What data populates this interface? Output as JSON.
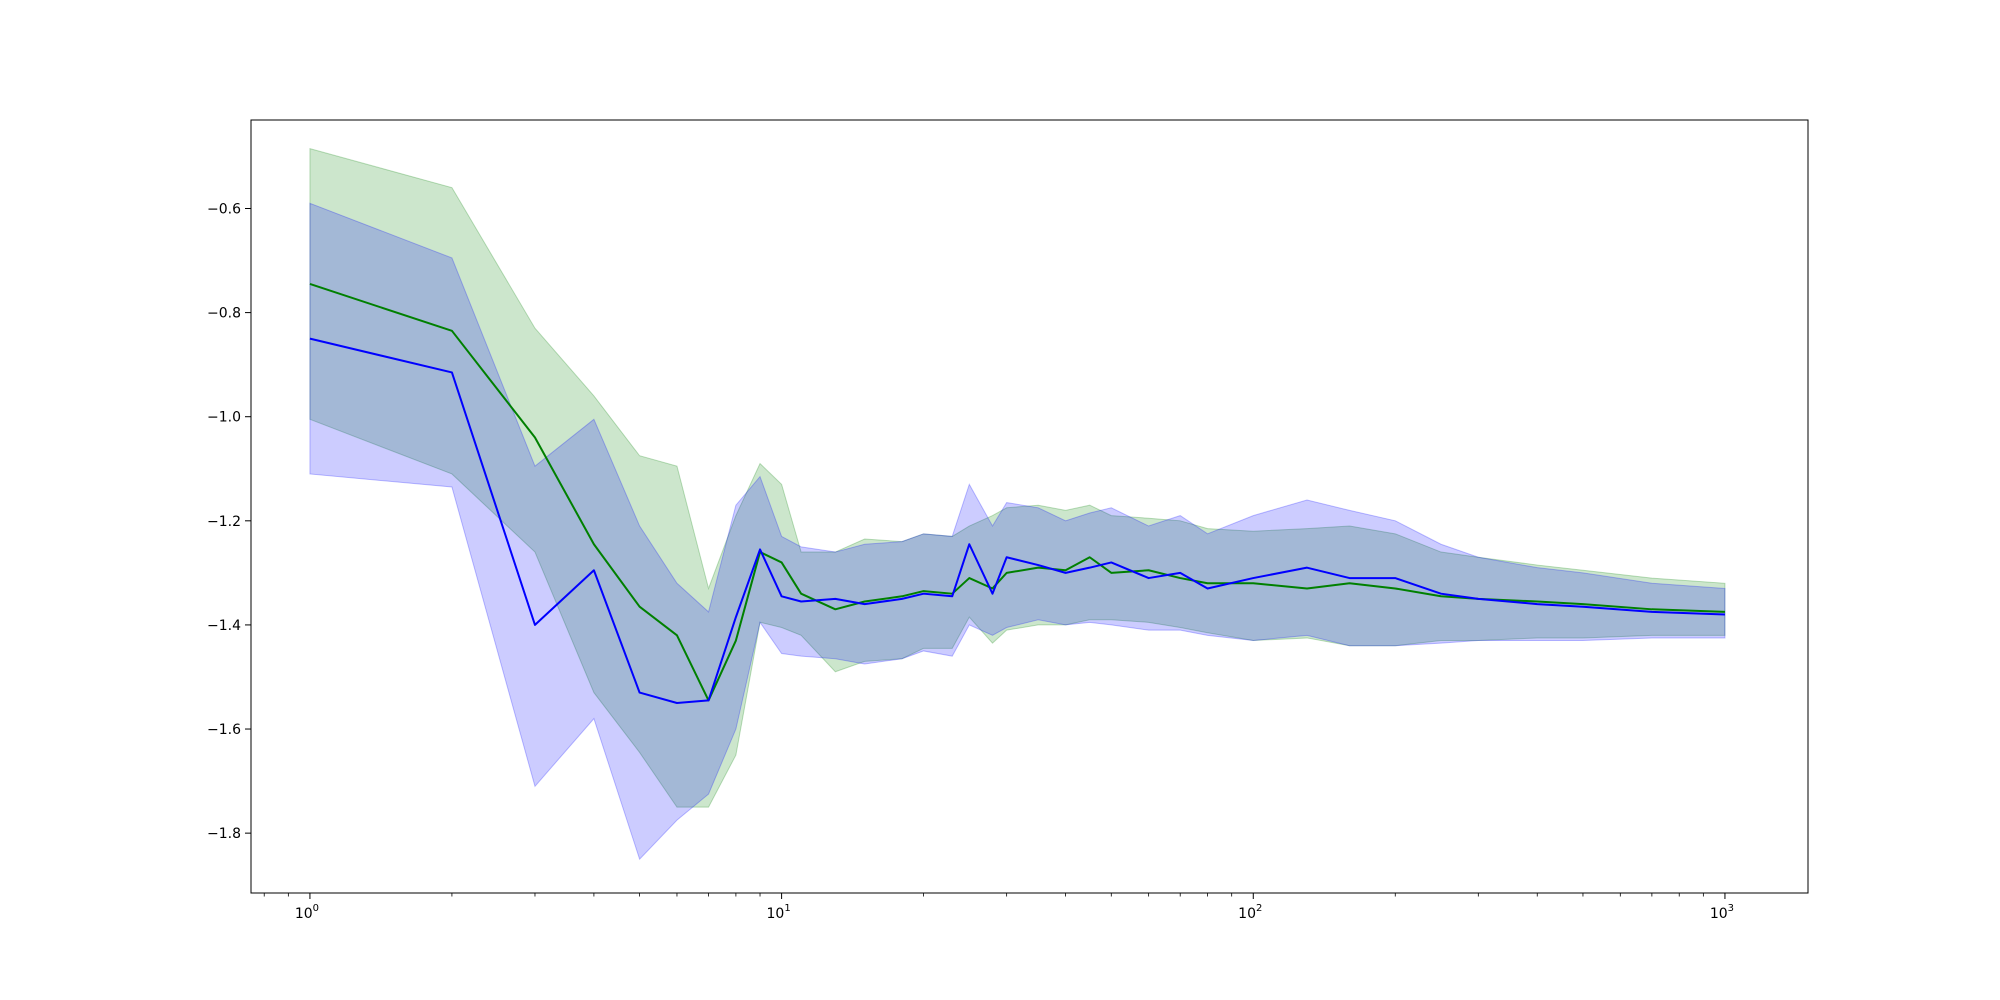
{
  "chart_data": {
    "type": "line",
    "xscale": "log",
    "xlim": [
      0.75,
      1500
    ],
    "ylim": [
      -1.915,
      -0.43
    ],
    "grid": false,
    "legend": "none",
    "title": "",
    "xlabel": "",
    "ylabel": "",
    "x_ticks": [
      {
        "value": 1,
        "label_base": "10",
        "label_exp": "0"
      },
      {
        "value": 10,
        "label_base": "10",
        "label_exp": "1"
      },
      {
        "value": 100,
        "label_base": "10",
        "label_exp": "2"
      },
      {
        "value": 1000,
        "label_base": "10",
        "label_exp": "3"
      }
    ],
    "y_ticks": [
      {
        "value": -0.6,
        "label": "−0.6"
      },
      {
        "value": -0.8,
        "label": "−0.8"
      },
      {
        "value": -1.0,
        "label": "−1.0"
      },
      {
        "value": -1.2,
        "label": "−1.2"
      },
      {
        "value": -1.4,
        "label": "−1.4"
      },
      {
        "value": -1.6,
        "label": "−1.6"
      },
      {
        "value": -1.8,
        "label": "−1.8"
      }
    ],
    "series": [
      {
        "color": "#008000",
        "band_color": "#008000",
        "band_opacity": 0.2,
        "x": [
          1,
          2,
          3,
          4,
          5,
          6,
          7,
          8,
          9,
          10,
          11,
          13,
          15,
          18,
          20,
          23,
          25,
          28,
          30,
          35,
          40,
          45,
          50,
          60,
          70,
          80,
          100,
          130,
          160,
          200,
          250,
          300,
          400,
          500,
          700,
          1000
        ],
        "values": [
          -0.745,
          -0.835,
          -1.04,
          -1.245,
          -1.365,
          -1.42,
          -1.545,
          -1.43,
          -1.26,
          -1.28,
          -1.34,
          -1.37,
          -1.355,
          -1.345,
          -1.335,
          -1.34,
          -1.31,
          -1.33,
          -1.3,
          -1.29,
          -1.295,
          -1.27,
          -1.3,
          -1.295,
          -1.31,
          -1.32,
          -1.32,
          -1.33,
          -1.32,
          -1.33,
          -1.345,
          -1.35,
          -1.355,
          -1.36,
          -1.37,
          -1.375
        ],
        "lower": [
          -1.005,
          -1.11,
          -1.26,
          -1.53,
          -1.645,
          -1.75,
          -1.75,
          -1.65,
          -1.395,
          -1.405,
          -1.42,
          -1.49,
          -1.47,
          -1.465,
          -1.445,
          -1.445,
          -1.385,
          -1.435,
          -1.41,
          -1.4,
          -1.4,
          -1.39,
          -1.39,
          -1.395,
          -1.405,
          -1.415,
          -1.43,
          -1.425,
          -1.44,
          -1.44,
          -1.43,
          -1.43,
          -1.425,
          -1.425,
          -1.42,
          -1.42
        ],
        "upper": [
          -0.485,
          -0.56,
          -0.83,
          -0.96,
          -1.075,
          -1.095,
          -1.33,
          -1.19,
          -1.09,
          -1.13,
          -1.26,
          -1.26,
          -1.235,
          -1.24,
          -1.225,
          -1.23,
          -1.21,
          -1.19,
          -1.175,
          -1.17,
          -1.18,
          -1.17,
          -1.19,
          -1.195,
          -1.2,
          -1.215,
          -1.22,
          -1.215,
          -1.21,
          -1.225,
          -1.26,
          -1.27,
          -1.285,
          -1.295,
          -1.31,
          -1.32
        ]
      },
      {
        "color": "#0000ff",
        "band_color": "#0000ff",
        "band_opacity": 0.2,
        "x": [
          1,
          2,
          3,
          4,
          5,
          6,
          7,
          8,
          9,
          10,
          11,
          13,
          15,
          18,
          20,
          23,
          25,
          28,
          30,
          35,
          40,
          45,
          50,
          60,
          70,
          80,
          100,
          130,
          160,
          200,
          250,
          300,
          400,
          500,
          700,
          1000
        ],
        "values": [
          -0.85,
          -0.915,
          -1.4,
          -1.295,
          -1.53,
          -1.55,
          -1.545,
          -1.385,
          -1.255,
          -1.345,
          -1.355,
          -1.35,
          -1.36,
          -1.35,
          -1.34,
          -1.345,
          -1.245,
          -1.34,
          -1.27,
          -1.285,
          -1.3,
          -1.29,
          -1.28,
          -1.31,
          -1.3,
          -1.33,
          -1.31,
          -1.29,
          -1.31,
          -1.31,
          -1.34,
          -1.35,
          -1.36,
          -1.365,
          -1.375,
          -1.38
        ],
        "lower": [
          -1.11,
          -1.135,
          -1.71,
          -1.58,
          -1.85,
          -1.775,
          -1.725,
          -1.6,
          -1.395,
          -1.455,
          -1.46,
          -1.465,
          -1.475,
          -1.465,
          -1.45,
          -1.46,
          -1.4,
          -1.42,
          -1.405,
          -1.39,
          -1.4,
          -1.395,
          -1.4,
          -1.41,
          -1.41,
          -1.42,
          -1.43,
          -1.42,
          -1.44,
          -1.44,
          -1.435,
          -1.43,
          -1.43,
          -1.43,
          -1.425,
          -1.425
        ],
        "upper": [
          -0.59,
          -0.695,
          -1.095,
          -1.005,
          -1.21,
          -1.32,
          -1.375,
          -1.17,
          -1.115,
          -1.23,
          -1.25,
          -1.26,
          -1.245,
          -1.24,
          -1.225,
          -1.23,
          -1.13,
          -1.21,
          -1.165,
          -1.175,
          -1.2,
          -1.185,
          -1.175,
          -1.21,
          -1.19,
          -1.225,
          -1.19,
          -1.16,
          -1.18,
          -1.2,
          -1.245,
          -1.27,
          -1.29,
          -1.3,
          -1.32,
          -1.33
        ]
      }
    ]
  }
}
